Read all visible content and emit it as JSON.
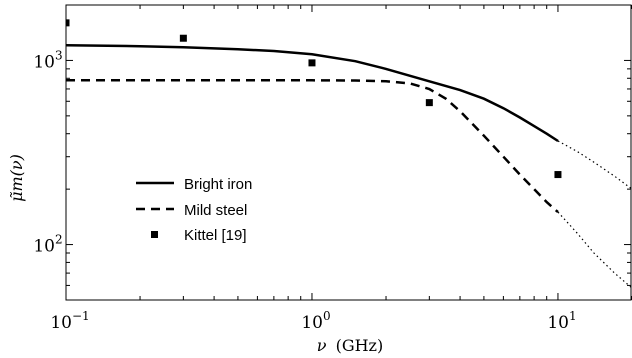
{
  "chart_data": {
    "type": "line",
    "xscale": "log",
    "yscale": "log",
    "xlim": [
      0.1,
      20
    ],
    "ylim": [
      50,
      2000
    ],
    "xlabel_var": "ν",
    "xlabel_unit": "(GHz)",
    "ylabel": "μ̃m(ν)",
    "xticks": [
      {
        "value": 0.1,
        "base": "10",
        "exp": "−1"
      },
      {
        "value": 1,
        "base": "10",
        "exp": "0"
      },
      {
        "value": 10,
        "base": "10",
        "exp": "1"
      }
    ],
    "yticks": [
      {
        "value": 100,
        "base": "10",
        "exp": "2"
      },
      {
        "value": 1000,
        "base": "10",
        "exp": "3"
      }
    ],
    "legend_position": "center-left",
    "series": [
      {
        "name": "Bright iron",
        "style": "solid",
        "x": [
          0.1,
          0.2,
          0.3,
          0.5,
          0.7,
          1.0,
          1.5,
          2.0,
          3.0,
          4.0,
          5.0,
          6.0,
          7.0,
          8.0,
          9.0,
          10.0
        ],
        "y": [
          1210,
          1195,
          1180,
          1150,
          1125,
          1080,
          990,
          900,
          770,
          690,
          620,
          550,
          490,
          440,
          400,
          365
        ],
        "ext_x": [
          10,
          12,
          14,
          17,
          20
        ],
        "ext_y": [
          365,
          320,
          280,
          235,
          200
        ]
      },
      {
        "name": "Mild steel",
        "style": "dashed",
        "x": [
          0.1,
          0.3,
          1.0,
          1.5,
          2.0,
          2.5,
          3.0,
          3.5,
          4.0,
          5.0,
          6.0,
          7.0,
          8.0,
          9.0,
          10.0
        ],
        "y": [
          780,
          780,
          780,
          778,
          770,
          750,
          700,
          620,
          530,
          390,
          300,
          240,
          200,
          170,
          150
        ],
        "ext_x": [
          10,
          12,
          14,
          17,
          20
        ],
        "ext_y": [
          150,
          115,
          90,
          70,
          58
        ]
      },
      {
        "name": "Kittel [19]",
        "style": "markers",
        "x": [
          0.1,
          0.3,
          1.0,
          3.0,
          10.0
        ],
        "y": [
          1600,
          1320,
          970,
          590,
          240
        ]
      }
    ]
  }
}
